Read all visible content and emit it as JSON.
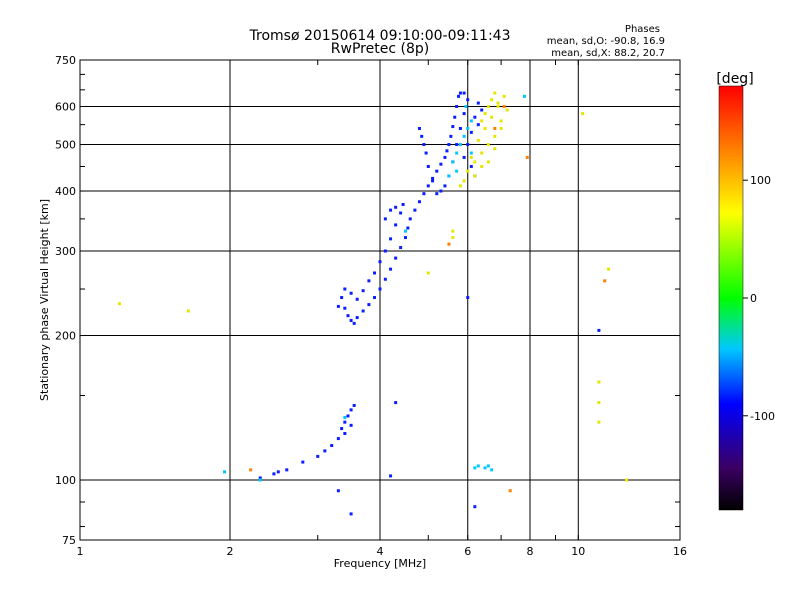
{
  "chart_data": {
    "type": "scatter",
    "title": "Tromsø 20150614 09:10:00-09:11:43",
    "subtitle": "RwPretec (8p)",
    "xlabel": "Frequency [MHz]",
    "ylabel": "Stationary phase Virtual Height [km]",
    "x_scale": "log",
    "y_scale": "log",
    "xlim": [
      1,
      16
    ],
    "ylim": [
      75,
      750
    ],
    "x_ticks": [
      1,
      2,
      4,
      6,
      8,
      10,
      16
    ],
    "y_ticks": [
      75,
      100,
      200,
      300,
      400,
      500,
      600,
      750
    ],
    "grid": true,
    "info": {
      "heading": "Phases",
      "line1": "mean, sd,O: -90.8, 16.9",
      "line2": "mean, sd,X: 88.2, 20.7"
    },
    "colorbar": {
      "label": "[deg]",
      "range": [
        -180,
        180
      ],
      "ticks": [
        100,
        0,
        -100
      ],
      "colors": [
        "#000000",
        "#3b0064",
        "#0000ff",
        "#00c8ff",
        "#00ff00",
        "#ffff00",
        "#ff8000",
        "#ff0000"
      ]
    },
    "series": [
      {
        "phase": -100,
        "points": [
          [
            3.5,
            215
          ],
          [
            3.45,
            220
          ],
          [
            3.4,
            228
          ],
          [
            3.55,
            212
          ],
          [
            3.6,
            218
          ],
          [
            3.7,
            225
          ],
          [
            3.8,
            232
          ],
          [
            3.9,
            240
          ],
          [
            4.0,
            250
          ],
          [
            4.1,
            262
          ],
          [
            4.2,
            275
          ],
          [
            4.3,
            290
          ],
          [
            4.4,
            305
          ],
          [
            4.5,
            320
          ],
          [
            4.55,
            335
          ],
          [
            4.6,
            350
          ],
          [
            4.7,
            365
          ],
          [
            4.8,
            380
          ],
          [
            4.9,
            395
          ],
          [
            5.0,
            410
          ],
          [
            5.1,
            425
          ],
          [
            5.2,
            440
          ],
          [
            5.3,
            455
          ],
          [
            5.4,
            470
          ],
          [
            5.45,
            485
          ],
          [
            5.5,
            500
          ],
          [
            5.55,
            520
          ],
          [
            5.6,
            545
          ],
          [
            5.65,
            570
          ],
          [
            5.7,
            600
          ],
          [
            5.75,
            630
          ],
          [
            5.8,
            640
          ],
          [
            5.9,
            640
          ],
          [
            6.0,
            620
          ],
          [
            5.9,
            580
          ],
          [
            5.8,
            540
          ],
          [
            5.7,
            500
          ],
          [
            5.6,
            460
          ],
          [
            5.5,
            430
          ],
          [
            5.4,
            410
          ],
          [
            5.3,
            400
          ],
          [
            5.2,
            395
          ],
          [
            5.1,
            420
          ],
          [
            5.0,
            450
          ],
          [
            4.95,
            480
          ],
          [
            4.9,
            500
          ],
          [
            4.85,
            520
          ],
          [
            4.8,
            540
          ],
          [
            3.3,
            230
          ],
          [
            3.35,
            240
          ],
          [
            3.4,
            250
          ],
          [
            3.5,
            245
          ],
          [
            3.6,
            238
          ],
          [
            3.7,
            248
          ],
          [
            3.8,
            260
          ],
          [
            3.9,
            270
          ],
          [
            4.0,
            285
          ],
          [
            4.1,
            300
          ],
          [
            4.2,
            318
          ],
          [
            4.3,
            340
          ],
          [
            4.4,
            360
          ],
          [
            4.45,
            375
          ],
          [
            4.3,
            370
          ],
          [
            4.2,
            365
          ],
          [
            4.1,
            350
          ],
          [
            3.3,
            122
          ],
          [
            3.35,
            128
          ],
          [
            3.4,
            132
          ],
          [
            3.45,
            136
          ],
          [
            3.5,
            140
          ],
          [
            3.55,
            143
          ],
          [
            3.2,
            118
          ],
          [
            3.1,
            115
          ],
          [
            3.0,
            112
          ],
          [
            2.8,
            109
          ],
          [
            2.6,
            105
          ],
          [
            2.5,
            104
          ],
          [
            2.45,
            103
          ],
          [
            2.3,
            101
          ],
          [
            3.4,
            125
          ],
          [
            3.5,
            130
          ],
          [
            6.0,
            240
          ],
          [
            6.2,
            88
          ],
          [
            3.5,
            85
          ],
          [
            3.3,
            95
          ],
          [
            4.2,
            102
          ],
          [
            4.3,
            145
          ],
          [
            6.3,
            610
          ],
          [
            6.4,
            590
          ],
          [
            6.2,
            570
          ],
          [
            6.3,
            550
          ],
          [
            6.1,
            530
          ],
          [
            6.0,
            500
          ],
          [
            5.9,
            470
          ],
          [
            6.1,
            450
          ],
          [
            6.2,
            430
          ],
          [
            11.0,
            205
          ]
        ]
      },
      {
        "phase": -20,
        "points": [
          [
            5.6,
            460
          ],
          [
            5.7,
            480
          ],
          [
            5.8,
            500
          ],
          [
            5.9,
            520
          ],
          [
            6.0,
            540
          ],
          [
            5.7,
            440
          ],
          [
            5.5,
            430
          ],
          [
            6.1,
            480
          ],
          [
            4.5,
            330
          ],
          [
            6.3,
            107
          ],
          [
            6.5,
            106
          ],
          [
            6.7,
            105
          ],
          [
            6.2,
            106
          ],
          [
            6.6,
            107
          ],
          [
            1.95,
            104
          ],
          [
            2.3,
            100
          ],
          [
            3.4,
            135
          ],
          [
            7.8,
            630
          ],
          [
            6.1,
            560
          ],
          [
            5.95,
            600
          ]
        ]
      },
      {
        "phase": 100,
        "points": [
          [
            6.4,
            560
          ],
          [
            6.5,
            580
          ],
          [
            6.6,
            600
          ],
          [
            6.7,
            620
          ],
          [
            6.8,
            640
          ],
          [
            6.9,
            600
          ],
          [
            7.0,
            560
          ],
          [
            6.8,
            520
          ],
          [
            6.6,
            500
          ],
          [
            6.4,
            480
          ],
          [
            6.2,
            460
          ],
          [
            6.0,
            440
          ],
          [
            5.9,
            420
          ],
          [
            5.8,
            410
          ],
          [
            6.1,
            470
          ],
          [
            6.3,
            510
          ],
          [
            6.5,
            540
          ],
          [
            6.7,
            570
          ],
          [
            6.9,
            610
          ],
          [
            7.1,
            630
          ],
          [
            7.2,
            590
          ],
          [
            7.0,
            540
          ],
          [
            6.8,
            490
          ],
          [
            6.6,
            460
          ],
          [
            6.4,
            450
          ],
          [
            6.2,
            430
          ],
          [
            5.0,
            270
          ],
          [
            5.6,
            330
          ],
          [
            5.6,
            320
          ],
          [
            11.0,
            160
          ],
          [
            11.0,
            145
          ],
          [
            11.0,
            132
          ],
          [
            11.5,
            275
          ],
          [
            12.5,
            100
          ],
          [
            1.65,
            225
          ],
          [
            1.2,
            233
          ],
          [
            10.2,
            580
          ]
        ]
      },
      {
        "phase": 150,
        "points": [
          [
            2.2,
            105
          ],
          [
            7.3,
            95
          ],
          [
            7.9,
            470
          ],
          [
            11.3,
            260
          ],
          [
            6.8,
            540
          ],
          [
            7.1,
            600
          ],
          [
            5.5,
            310
          ]
        ]
      }
    ]
  }
}
